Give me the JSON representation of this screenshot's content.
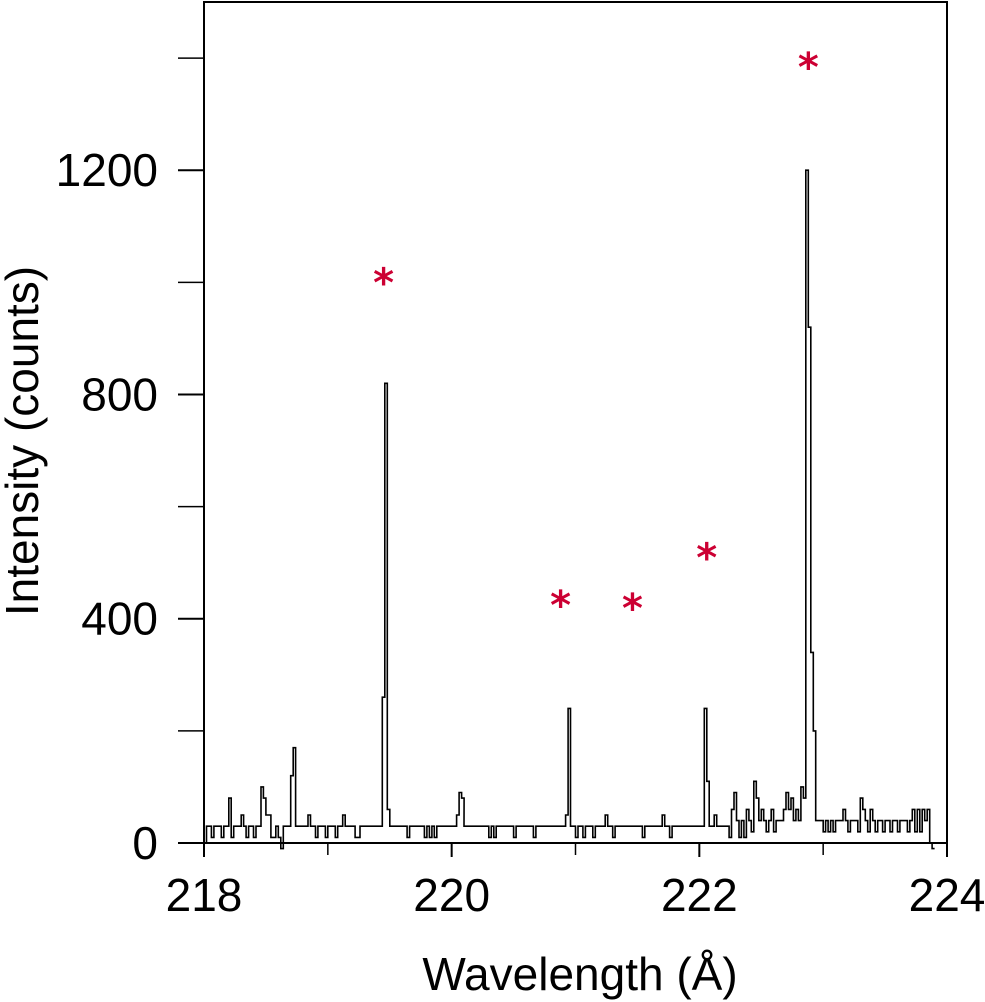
{
  "chart_data": {
    "type": "line",
    "title": "",
    "xlabel": "Wavelength (Å)",
    "ylabel": "Intensity (counts)",
    "xlim": [
      218,
      224
    ],
    "ylim": [
      0,
      1500
    ],
    "x_ticks_major": [
      218,
      220,
      222,
      224
    ],
    "x_tick_labels": [
      "218",
      "220",
      "222",
      "224"
    ],
    "x_ticks_minor": [
      219,
      221,
      223
    ],
    "y_ticks_major": [
      0,
      400,
      800,
      1200
    ],
    "y_tick_labels": [
      "0",
      "400",
      "800",
      "1200"
    ],
    "y_ticks_minor": [
      200,
      600,
      1000,
      1400
    ],
    "grid": false,
    "legend": "none",
    "line_color": "#000000",
    "marker_color": "#cc0033",
    "marker_symbol": "*",
    "bin_width": 0.02,
    "spectrum_x_start": 218.0,
    "spectrum_counts": [
      0,
      30,
      30,
      10,
      30,
      30,
      30,
      10,
      30,
      30,
      80,
      10,
      30,
      30,
      30,
      50,
      30,
      10,
      30,
      30,
      10,
      30,
      30,
      100,
      80,
      50,
      50,
      10,
      10,
      30,
      10,
      -10,
      30,
      30,
      30,
      120,
      170,
      30,
      30,
      30,
      30,
      30,
      50,
      30,
      30,
      10,
      30,
      30,
      30,
      10,
      30,
      30,
      30,
      10,
      30,
      30,
      50,
      30,
      30,
      30,
      30,
      10,
      10,
      30,
      30,
      30,
      30,
      30,
      30,
      30,
      30,
      30,
      260,
      820,
      60,
      30,
      30,
      30,
      30,
      30,
      30,
      30,
      10,
      30,
      30,
      30,
      30,
      30,
      30,
      10,
      30,
      10,
      30,
      10,
      30,
      30,
      30,
      30,
      30,
      30,
      30,
      30,
      50,
      90,
      80,
      30,
      30,
      30,
      30,
      30,
      30,
      30,
      30,
      30,
      30,
      10,
      30,
      10,
      30,
      30,
      30,
      30,
      30,
      30,
      30,
      10,
      30,
      30,
      30,
      30,
      30,
      30,
      30,
      10,
      30,
      30,
      30,
      30,
      30,
      30,
      30,
      30,
      30,
      30,
      30,
      30,
      50,
      240,
      30,
      30,
      10,
      30,
      30,
      10,
      30,
      30,
      30,
      10,
      30,
      30,
      30,
      30,
      50,
      30,
      30,
      10,
      30,
      30,
      30,
      30,
      30,
      30,
      30,
      30,
      30,
      30,
      30,
      10,
      30,
      30,
      30,
      30,
      30,
      30,
      30,
      50,
      30,
      30,
      10,
      30,
      30,
      30,
      30,
      30,
      30,
      30,
      30,
      30,
      30,
      30,
      30,
      30,
      240,
      110,
      30,
      30,
      50,
      30,
      30,
      30,
      30,
      30,
      30,
      30,
      30,
      10,
      30,
      30,
      30,
      30,
      30,
      30,
      30,
      80,
      60,
      30,
      30,
      30,
      30,
      30,
      30,
      30,
      30,
      30,
      30,
      30,
      30,
      30,
      30,
      30,
      30,
      30,
      300,
      350,
      60,
      30,
      30,
      30,
      30,
      30,
      30,
      30,
      30,
      30,
      30,
      30,
      30,
      30,
      30,
      30,
      30,
      30,
      30,
      30,
      30,
      30,
      30,
      30,
      30,
      30,
      30,
      30,
      30,
      30,
      30,
      30,
      30,
      30,
      30,
      30,
      30,
      30,
      30,
      30,
      30,
      30,
      30,
      30,
      30,
      30,
      30,
      30,
      30,
      30,
      30,
      30,
      30,
      30,
      30,
      30,
      30,
      30,
      30,
      30,
      30,
      30,
      30,
      30,
      30,
      30,
      30,
      30,
      30,
      30,
      30,
      30,
      30,
      30,
      30,
      30,
      30,
      30,
      30,
      30,
      30,
      30,
      30,
      30,
      30,
      30,
      30,
      30,
      30,
      30,
      30,
      30,
      30,
      30,
      30,
      30,
      30,
      30,
      30,
      30,
      30,
      30,
      30,
      30,
      30,
      30,
      30,
      30,
      30,
      30,
      30,
      30,
      30,
      30,
      30,
      30,
      30,
      30,
      30,
      30,
      30,
      30,
      30,
      30,
      30,
      30,
      30,
      30,
      30,
      30,
      30,
      30,
      30,
      30,
      30,
      30,
      30,
      30,
      30,
      30,
      30,
      30,
      30,
      30,
      30,
      30,
      30,
      30,
      30,
      30,
      30,
      30,
      30,
      30,
      30,
      30
    ],
    "spectrum_overrides": [
      {
        "x": 222.24,
        "count": 10
      },
      {
        "x": 222.26,
        "count": 60
      },
      {
        "x": 222.28,
        "count": 90
      },
      {
        "x": 222.3,
        "count": 40
      },
      {
        "x": 222.32,
        "count": 10
      },
      {
        "x": 222.34,
        "count": 40
      },
      {
        "x": 222.36,
        "count": 10
      },
      {
        "x": 222.38,
        "count": 60
      },
      {
        "x": 222.4,
        "count": 40
      },
      {
        "x": 222.42,
        "count": 20
      },
      {
        "x": 222.44,
        "count": 110
      },
      {
        "x": 222.46,
        "count": 80
      },
      {
        "x": 222.48,
        "count": 40
      },
      {
        "x": 222.5,
        "count": 60
      },
      {
        "x": 222.52,
        "count": 40
      },
      {
        "x": 222.54,
        "count": 20
      },
      {
        "x": 222.56,
        "count": 40
      },
      {
        "x": 222.58,
        "count": 60
      },
      {
        "x": 222.6,
        "count": 20
      },
      {
        "x": 222.62,
        "count": 40
      },
      {
        "x": 222.64,
        "count": 40
      },
      {
        "x": 222.66,
        "count": 40
      },
      {
        "x": 222.68,
        "count": 60
      },
      {
        "x": 222.7,
        "count": 90
      },
      {
        "x": 222.72,
        "count": 60
      },
      {
        "x": 222.74,
        "count": 80
      },
      {
        "x": 222.76,
        "count": 40
      },
      {
        "x": 222.78,
        "count": 60
      },
      {
        "x": 222.8,
        "count": 40
      },
      {
        "x": 222.82,
        "count": 100
      },
      {
        "x": 222.84,
        "count": 80
      },
      {
        "x": 222.86,
        "count": 1200
      },
      {
        "x": 222.88,
        "count": 920
      },
      {
        "x": 222.9,
        "count": 340
      },
      {
        "x": 222.92,
        "count": 200
      },
      {
        "x": 222.94,
        "count": 40
      },
      {
        "x": 222.96,
        "count": 40
      },
      {
        "x": 222.98,
        "count": 40
      },
      {
        "x": 223.0,
        "count": 20
      },
      {
        "x": 223.02,
        "count": 40
      },
      {
        "x": 223.04,
        "count": 20
      },
      {
        "x": 223.06,
        "count": 40
      },
      {
        "x": 223.08,
        "count": 20
      },
      {
        "x": 223.1,
        "count": 40
      },
      {
        "x": 223.12,
        "count": 40
      },
      {
        "x": 223.14,
        "count": 40
      },
      {
        "x": 223.16,
        "count": 60
      },
      {
        "x": 223.18,
        "count": 40
      },
      {
        "x": 223.2,
        "count": 20
      },
      {
        "x": 223.22,
        "count": 40
      },
      {
        "x": 223.24,
        "count": 40
      },
      {
        "x": 223.26,
        "count": 40
      },
      {
        "x": 223.28,
        "count": 20
      },
      {
        "x": 223.3,
        "count": 80
      },
      {
        "x": 223.32,
        "count": 60
      },
      {
        "x": 223.34,
        "count": 40
      },
      {
        "x": 223.36,
        "count": 20
      },
      {
        "x": 223.38,
        "count": 60
      },
      {
        "x": 223.4,
        "count": 40
      },
      {
        "x": 223.42,
        "count": 20
      },
      {
        "x": 223.44,
        "count": 40
      },
      {
        "x": 223.46,
        "count": 40
      },
      {
        "x": 223.48,
        "count": 20
      },
      {
        "x": 223.5,
        "count": 40
      },
      {
        "x": 223.52,
        "count": 40
      },
      {
        "x": 223.54,
        "count": 20
      },
      {
        "x": 223.56,
        "count": 40
      },
      {
        "x": 223.58,
        "count": 40
      },
      {
        "x": 223.6,
        "count": 20
      },
      {
        "x": 223.62,
        "count": 40
      },
      {
        "x": 223.64,
        "count": 40
      },
      {
        "x": 223.66,
        "count": 40
      },
      {
        "x": 223.68,
        "count": 20
      },
      {
        "x": 223.7,
        "count": 40
      },
      {
        "x": 223.72,
        "count": 60
      },
      {
        "x": 223.74,
        "count": 20
      },
      {
        "x": 223.76,
        "count": 60
      },
      {
        "x": 223.78,
        "count": 20
      },
      {
        "x": 223.8,
        "count": 60
      },
      {
        "x": 223.82,
        "count": 40
      },
      {
        "x": 223.84,
        "count": 60
      },
      {
        "x": 223.86,
        "count": 0
      },
      {
        "x": 223.88,
        "count": -10
      }
    ],
    "peak_markers": [
      {
        "x": 219.45,
        "y": 1010
      },
      {
        "x": 220.88,
        "y": 435
      },
      {
        "x": 221.46,
        "y": 430
      },
      {
        "x": 222.06,
        "y": 520
      },
      {
        "x": 222.88,
        "y": 1395
      }
    ]
  }
}
